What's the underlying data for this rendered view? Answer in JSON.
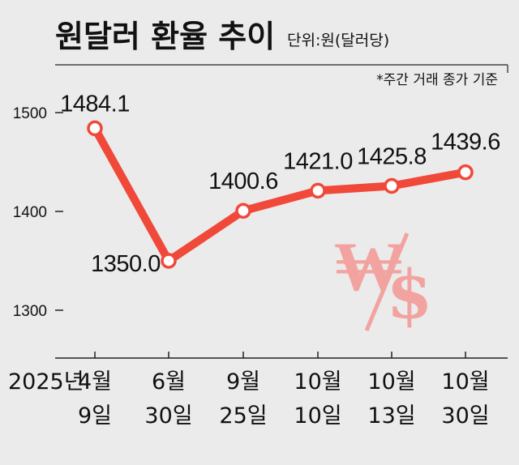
{
  "header": {
    "title": "원달러 환율 추이",
    "unit": "단위:원(달러당)",
    "note": "*주간 거래 종가 기준"
  },
  "colors": {
    "background": "#ebebeb",
    "line": "#f0493a",
    "axis": "#222222",
    "symbol": "#f2a3a0"
  },
  "decoration": {
    "won_symbol": "₩",
    "dollar_symbol": "$"
  },
  "chart_data": {
    "type": "line",
    "title": "원달러 환율 추이",
    "unit": "단위:원(달러당)",
    "year_label": "2025년",
    "categories": [
      [
        "4월",
        "9일"
      ],
      [
        "6월",
        "30일"
      ],
      [
        "9월",
        "25일"
      ],
      [
        "10월",
        "10일"
      ],
      [
        "10월",
        "13일"
      ],
      [
        "10월",
        "30일"
      ]
    ],
    "series": [
      {
        "values": [
          1484.1,
          1350.0,
          1400.6,
          1421.0,
          1425.8,
          1439.6
        ],
        "labels": [
          "1484.1",
          "1350.0",
          "1400.6",
          "1421.0",
          "1425.8",
          "1439.6"
        ]
      }
    ],
    "yticks": [
      1300,
      1400,
      1500
    ],
    "ylim": [
      1250,
      1550
    ],
    "grid": false
  }
}
